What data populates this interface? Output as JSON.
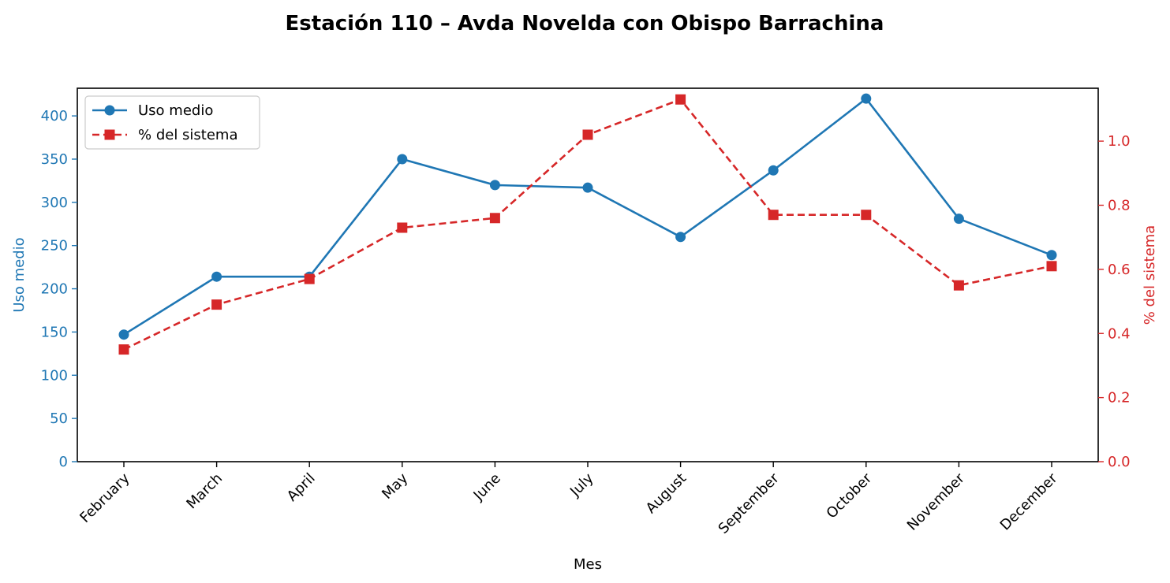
{
  "chart_data": {
    "type": "line",
    "title": "Estación 110 – Avda Novelda con Obispo Barrachina",
    "xlabel": "Mes",
    "ylabel_left": "Uso medio",
    "ylabel_right": "% del sistema",
    "categories": [
      "February",
      "March",
      "April",
      "May",
      "June",
      "July",
      "August",
      "September",
      "October",
      "November",
      "December"
    ],
    "y_left_range": [
      0,
      432
    ],
    "y_left_ticks": [
      0,
      50,
      100,
      150,
      200,
      250,
      300,
      350,
      400
    ],
    "y_right_range": [
      0,
      1.165
    ],
    "y_right_ticks": [
      "0.0",
      "0.2",
      "0.4",
      "0.6",
      "0.8",
      "1.0"
    ],
    "legend_position": "top-left",
    "grid": false,
    "series": [
      {
        "name": "Uso medio",
        "axis": "left",
        "color": "#1f77b4",
        "marker": "circle",
        "line_style": "solid",
        "values": [
          147,
          214,
          214,
          350,
          320,
          317,
          260,
          337,
          420,
          281,
          239
        ]
      },
      {
        "name": "% del sistema",
        "axis": "right",
        "color": "#d62728",
        "marker": "square",
        "line_style": "dashed",
        "values": [
          0.35,
          0.49,
          0.57,
          0.73,
          0.76,
          1.02,
          1.13,
          0.77,
          0.77,
          0.55,
          0.61
        ]
      }
    ]
  }
}
